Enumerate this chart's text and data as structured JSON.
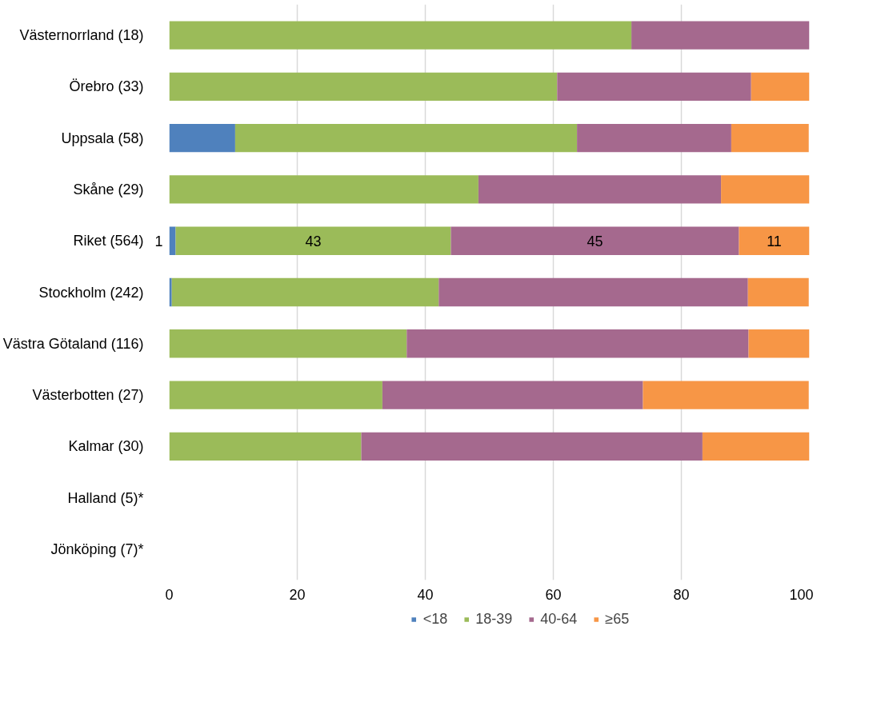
{
  "chart_data": {
    "type": "bar",
    "orientation": "horizontal",
    "stacked": true,
    "categories": [
      "Västernorrland (18)",
      "Örebro (33)",
      "Uppsala (58)",
      "Skåne (29)",
      "Riket (564)",
      "Stockholm (242)",
      "Västra Götaland (116)",
      "Västerbotten (27)",
      "Kalmar (30)",
      "Halland (5)*",
      "Jönköping (7)*"
    ],
    "series": [
      {
        "name": "<18",
        "color": "#4f81bd",
        "values": [
          null,
          null,
          10.3,
          null,
          1,
          0.4,
          null,
          null,
          null,
          null,
          null
        ],
        "value_labels": [
          null,
          null,
          null,
          null,
          "1",
          null,
          null,
          null,
          null,
          null,
          null
        ]
      },
      {
        "name": "18-39",
        "color": "#9bbb59",
        "values": [
          72.2,
          60.6,
          53.4,
          48.3,
          43,
          41.7,
          37.1,
          33.3,
          30.0,
          null,
          null
        ],
        "value_labels": [
          null,
          null,
          null,
          null,
          "43",
          null,
          null,
          null,
          null,
          null,
          null
        ]
      },
      {
        "name": "40-64",
        "color": "#a5698e",
        "values": [
          27.8,
          30.3,
          24.1,
          37.9,
          45,
          48.3,
          53.4,
          40.7,
          53.3,
          null,
          null
        ],
        "value_labels": [
          null,
          null,
          null,
          null,
          "45",
          null,
          null,
          null,
          null,
          null,
          null
        ]
      },
      {
        "name": "≥65",
        "color": "#f79646",
        "values": [
          null,
          9.1,
          12.1,
          13.8,
          11,
          9.5,
          9.5,
          25.9,
          16.7,
          null,
          null
        ],
        "value_labels": [
          null,
          null,
          null,
          null,
          "11",
          null,
          null,
          null,
          null,
          null,
          null
        ]
      }
    ],
    "xlim": [
      0,
      100
    ],
    "xticks": [
      0,
      20,
      40,
      60,
      80,
      100
    ],
    "grid": "x",
    "legend": "bottom"
  }
}
